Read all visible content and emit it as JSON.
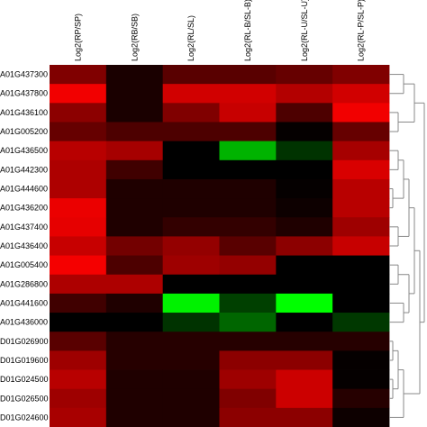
{
  "chart_data": {
    "type": "heatmap",
    "columns": [
      "Log2(RP/SP)",
      "Log2(RB/SB)",
      "Log2(RL/SL)",
      "Log2(RL-B/SL-B)",
      "Log2(RL-U/SL-U)",
      "Log2(RL-P/SL-P)"
    ],
    "rows": [
      "A01G437300",
      "A01G437800",
      "A01G436100",
      "A01G005200",
      "A01G436500",
      "A01G442300",
      "A01G444600",
      "A01G436200",
      "A01G437400",
      "A01G436400",
      "A01G005400",
      "A01G286800",
      "A01G441600",
      "A01G436000",
      "D01G026900",
      "D01G019600",
      "D01G024500",
      "D01G026500",
      "D01G024600"
    ],
    "values": [
      [
        0.5,
        0.1,
        0.35,
        0.35,
        0.4,
        0.5
      ],
      [
        0.95,
        0.1,
        0.82,
        0.82,
        0.7,
        0.82
      ],
      [
        0.55,
        0.1,
        0.5,
        0.78,
        0.3,
        0.95
      ],
      [
        0.4,
        0.3,
        0.3,
        0.3,
        0.02,
        0.4
      ],
      [
        0.72,
        0.65,
        0.0,
        -0.7,
        -0.2,
        0.65
      ],
      [
        0.68,
        0.25,
        0.0,
        0.0,
        0.0,
        0.85
      ],
      [
        0.68,
        0.12,
        0.12,
        0.12,
        0.02,
        0.72
      ],
      [
        0.92,
        0.12,
        0.12,
        0.12,
        0.05,
        0.72
      ],
      [
        0.9,
        0.12,
        0.2,
        0.2,
        0.12,
        0.62
      ],
      [
        0.78,
        0.45,
        0.58,
        0.35,
        0.55,
        0.78
      ],
      [
        0.96,
        0.3,
        0.62,
        0.58,
        0.0,
        0.0
      ],
      [
        0.68,
        0.68,
        0.0,
        0.0,
        0.0,
        0.0
      ],
      [
        0.25,
        0.12,
        -0.95,
        -0.25,
        -1.0,
        0.0
      ],
      [
        0.0,
        0.0,
        -0.2,
        -0.4,
        0.0,
        -0.22
      ],
      [
        0.35,
        0.15,
        0.15,
        0.15,
        0.15,
        0.15
      ],
      [
        0.62,
        0.15,
        0.15,
        0.55,
        0.55,
        0.02
      ],
      [
        0.72,
        0.12,
        0.12,
        0.62,
        0.8,
        0.02
      ],
      [
        0.62,
        0.12,
        0.12,
        0.5,
        0.8,
        0.15
      ],
      [
        0.66,
        0.12,
        0.12,
        0.55,
        0.55,
        0.05
      ]
    ],
    "colors": {
      "high": "#ff0000",
      "mid": "#000000",
      "low": "#00ff00"
    },
    "vmin": -1,
    "vmax": 1,
    "dendrogram": "rows-right"
  }
}
